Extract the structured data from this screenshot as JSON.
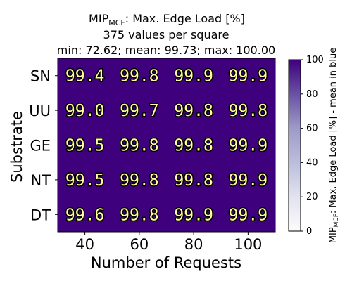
{
  "chart_data": {
    "type": "heatmap",
    "title": {
      "prefix": "MIP",
      "prefix_subscript": "MCF",
      "main": ": Max. Edge Load [%]",
      "line2": "375 values per square",
      "line3": "min: 72.62; mean: 99.73; max: 100.00"
    },
    "xlabel": "Number of Requests",
    "ylabel": "Substrate",
    "x_categories": [
      "40",
      "60",
      "80",
      "100"
    ],
    "y_categories": [
      "SN",
      "UU",
      "GE",
      "NT",
      "DT"
    ],
    "values": [
      [
        "99.4",
        "99.8",
        "99.9",
        "99.9"
      ],
      [
        "99.0",
        "99.7",
        "99.8",
        "99.8"
      ],
      [
        "99.5",
        "99.8",
        "99.8",
        "99.9"
      ],
      [
        "99.5",
        "99.8",
        "99.8",
        "99.9"
      ],
      [
        "99.6",
        "99.8",
        "99.9",
        "99.9"
      ]
    ],
    "colorbar": {
      "label_prefix": "MIP",
      "label_prefix_subscript": "MCF",
      "label_main": ": Max. Edge Load [%] - mean in blue",
      "range": [
        0,
        100
      ],
      "ticks": [
        "0",
        "20",
        "40",
        "60",
        "80",
        "100"
      ],
      "colormap": "Purples"
    },
    "cell_fill_color": "#3f007d",
    "cell_text_fill": "#ffff99",
    "cell_text_stroke": "#000000"
  }
}
